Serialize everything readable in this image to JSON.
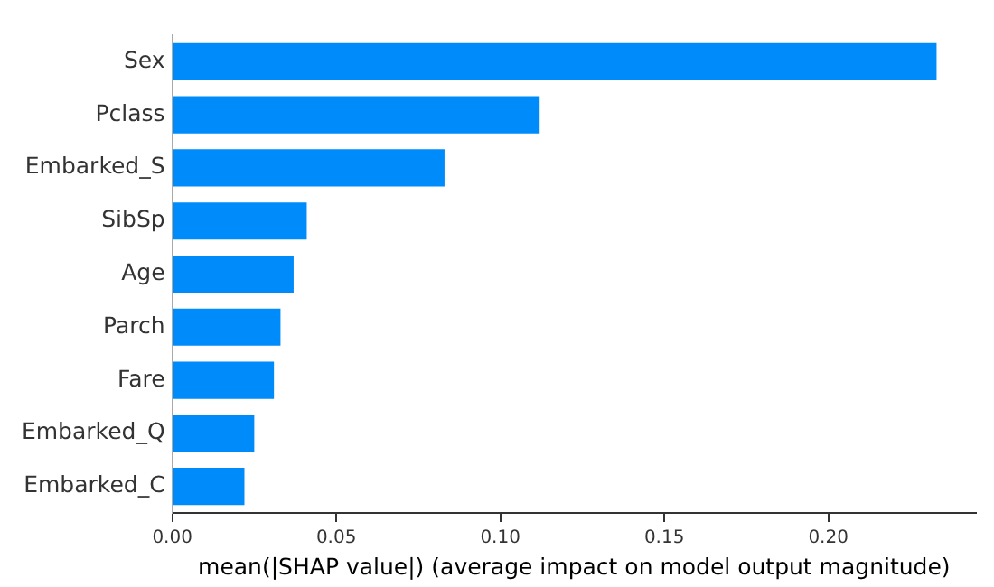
{
  "chart_data": {
    "type": "bar",
    "orientation": "horizontal",
    "xlabel": "mean(|SHAP value|) (average impact on model output magnitude)",
    "categories": [
      "Sex",
      "Pclass",
      "Embarked_S",
      "SibSp",
      "Age",
      "Parch",
      "Fare",
      "Embarked_Q",
      "Embarked_C"
    ],
    "values": [
      0.233,
      0.112,
      0.083,
      0.041,
      0.037,
      0.033,
      0.031,
      0.025,
      0.022
    ],
    "color": "#008bfb",
    "xlim": [
      0,
      0.245
    ],
    "xticks": [
      {
        "value": 0,
        "label": "0.00"
      },
      {
        "value": 0.05,
        "label": "0.05"
      },
      {
        "value": 0.1,
        "label": "0.10"
      },
      {
        "value": 0.15,
        "label": "0.15"
      },
      {
        "value": 0.2,
        "label": "0.20"
      }
    ],
    "grid": false,
    "legend": false
  }
}
